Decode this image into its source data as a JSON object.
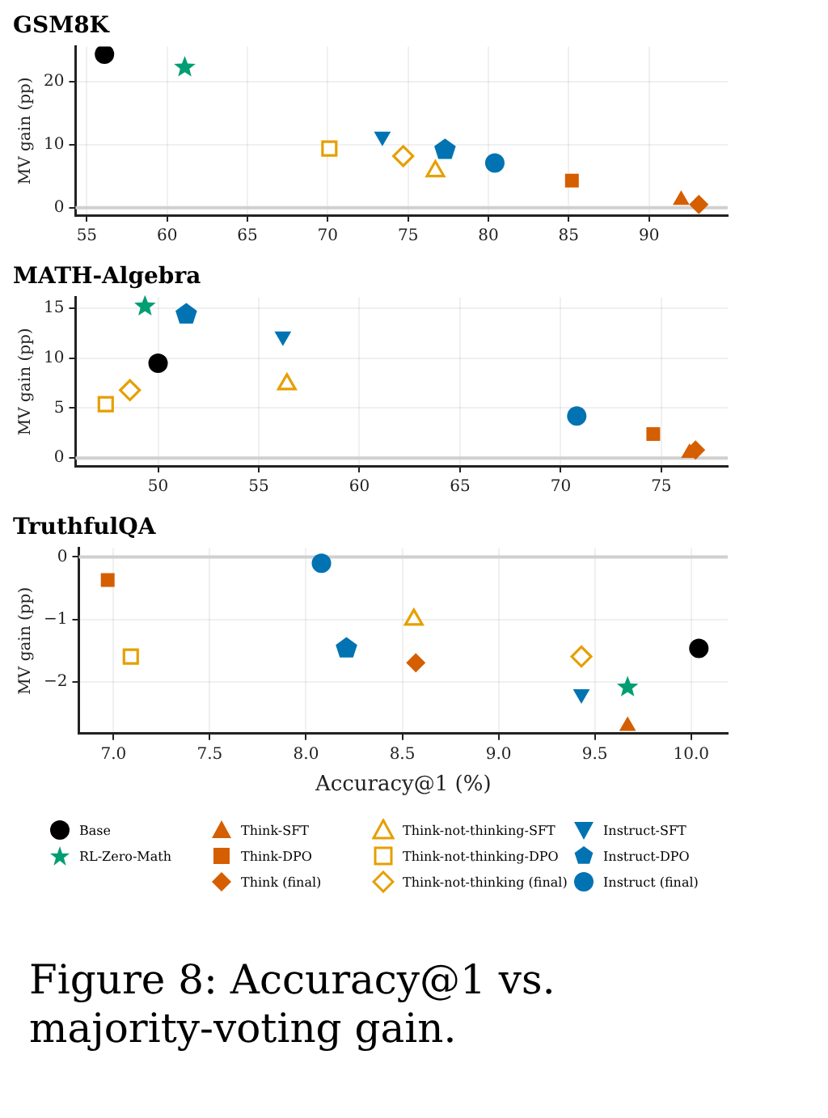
{
  "chart_data": [
    {
      "type": "scatter",
      "title": "GSM8K",
      "ylabel": "MV gain (pp)",
      "xlim": [
        54.3,
        94.9
      ],
      "xticks": [
        55,
        60,
        65,
        70,
        75,
        80,
        85,
        90
      ],
      "ylim": [
        -1.2,
        25.6
      ],
      "yticks": [
        0,
        10,
        20
      ],
      "grid": true,
      "legend": false,
      "ref_lines": [
        {
          "axis": "y",
          "value": 0,
          "color": "#d0d0d0"
        }
      ],
      "series": [
        {
          "color": "#000000",
          "marker": "circle",
          "x": [
            56.1
          ],
          "values": [
            24.4
          ]
        },
        {
          "color": "#029e73",
          "marker": "star",
          "x": [
            61.1
          ],
          "values": [
            22.3
          ]
        },
        {
          "color": "#d55e00",
          "marker": "triangle",
          "x": [
            92.0
          ],
          "values": [
            1.2
          ]
        },
        {
          "color": "#d55e00",
          "marker": "square",
          "x": [
            85.2
          ],
          "values": [
            4.3
          ]
        },
        {
          "color": "#d55e00",
          "marker": "diamond",
          "x": [
            93.1
          ],
          "values": [
            0.5
          ]
        },
        {
          "color": "#e69f00",
          "marker": "triangle-open",
          "x": [
            76.7
          ],
          "values": [
            5.8
          ]
        },
        {
          "color": "#e69f00",
          "marker": "square-open",
          "x": [
            70.1
          ],
          "values": [
            9.4
          ]
        },
        {
          "color": "#e69f00",
          "marker": "diamond-open",
          "x": [
            74.7
          ],
          "values": [
            8.2
          ]
        },
        {
          "color": "#0173b2",
          "marker": "triangle-down",
          "x": [
            73.4
          ],
          "values": [
            11.3
          ]
        },
        {
          "color": "#0173b2",
          "x": [
            77.3
          ],
          "values": [
            9.2
          ]
        },
        {
          "color": "#0173b2",
          "marker": "circle",
          "x": [
            80.4
          ],
          "values": [
            7.1
          ]
        }
      ]
    },
    {
      "type": "scatter",
      "title": "MATH-Algebra",
      "ylabel": "MV gain (pp)",
      "xlim": [
        45.9,
        78.3
      ],
      "xticks": [
        50,
        55,
        60,
        65,
        70,
        75
      ],
      "ylim": [
        -0.8,
        16.1
      ],
      "yticks": [
        0,
        5,
        10,
        15
      ],
      "grid": true,
      "legend": false,
      "ref_lines": [
        {
          "axis": "y",
          "value": 0,
          "color": "#d0d0d0"
        }
      ],
      "series": [
        {
          "color": "#000000",
          "marker": "circle",
          "x": [
            50.0
          ],
          "values": [
            9.5
          ]
        },
        {
          "color": "#029e73",
          "marker": "star",
          "x": [
            49.35
          ],
          "values": [
            15.2
          ]
        },
        {
          "color": "#d55e00",
          "marker": "triangle",
          "x": [
            76.4
          ],
          "values": [
            0.5
          ]
        },
        {
          "color": "#d55e00",
          "marker": "square",
          "x": [
            74.6
          ],
          "values": [
            2.4
          ]
        },
        {
          "color": "#d55e00",
          "marker": "diamond",
          "x": [
            76.7
          ],
          "values": [
            0.8
          ]
        },
        {
          "color": "#e69f00",
          "marker": "triangle-open",
          "x": [
            56.4
          ],
          "values": [
            7.4
          ]
        },
        {
          "color": "#e69f00",
          "marker": "square-open",
          "x": [
            47.4
          ],
          "values": [
            5.4
          ]
        },
        {
          "color": "#e69f00",
          "marker": "diamond-open",
          "x": [
            48.6
          ],
          "values": [
            6.8
          ]
        },
        {
          "color": "#0173b2",
          "marker": "triangle-down",
          "x": [
            56.2
          ],
          "values": [
            12.2
          ]
        },
        {
          "color": "#0173b2",
          "x": [
            51.4
          ],
          "values": [
            14.4
          ]
        },
        {
          "color": "#0173b2",
          "marker": "circle",
          "x": [
            70.8
          ],
          "values": [
            4.2
          ]
        }
      ]
    },
    {
      "type": "scatter",
      "title": "TruthfulQA",
      "xlabel": "Accuracy@1 (%)",
      "ylabel": "MV gain (pp)",
      "xlim": [
        6.82,
        10.19
      ],
      "xticks": [
        {
          "value": 7,
          "label": "7.0"
        },
        {
          "value": 7.5,
          "label": "7.5"
        },
        {
          "value": 8,
          "label": "8.0"
        },
        {
          "value": 8.5,
          "label": "8.5"
        },
        {
          "value": 9,
          "label": "9.0"
        },
        {
          "value": 9.5,
          "label": "9.5"
        },
        {
          "value": 10,
          "label": "10.0"
        }
      ],
      "ylim": [
        -2.82,
        0.14
      ],
      "yticks": [
        {
          "value": -2,
          "label": "−2"
        },
        {
          "value": -1,
          "label": "−1"
        },
        0
      ],
      "grid": true,
      "legend": "bottom",
      "ref_lines": [
        {
          "axis": "y",
          "value": 0,
          "color": "#d0d0d0"
        }
      ],
      "annotations": [
        "Figure 8:  Accuracy@1 vs. majority-voting gain."
      ],
      "series": [
        {
          "name": "Base",
          "color": "#000000",
          "marker": "circle",
          "x": [
            10.04
          ],
          "values": [
            -1.46
          ]
        },
        {
          "name": "RL-Zero-Math",
          "color": "#029e73",
          "marker": "star",
          "x": [
            9.67
          ],
          "values": [
            -2.08
          ]
        },
        {
          "name": "Think-SFT",
          "color": "#d55e00",
          "marker": "triangle",
          "x": [
            9.67
          ],
          "values": [
            -2.7
          ]
        },
        {
          "name": "Think-DPO",
          "color": "#d55e00",
          "marker": "square",
          "x": [
            6.97
          ],
          "values": [
            -0.37
          ]
        },
        {
          "name": "Think (final)",
          "color": "#d55e00",
          "marker": "diamond",
          "x": [
            8.57
          ],
          "values": [
            -1.69
          ]
        },
        {
          "name": "Think-not-thinking-SFT",
          "color": "#e69f00",
          "marker": "triangle-open",
          "x": [
            8.56
          ],
          "values": [
            -1.0
          ]
        },
        {
          "name": "Think-not-thinking-DPO",
          "color": "#e69f00",
          "marker": "square-open",
          "x": [
            7.09
          ],
          "values": [
            -1.59
          ]
        },
        {
          "name": "Think-not-thinking (final)",
          "color": "#e69f00",
          "marker": "diamond-open",
          "x": [
            9.43
          ],
          "values": [
            -1.59
          ]
        },
        {
          "name": "Instruct-SFT",
          "color": "#0173b2",
          "marker": "triangle-down",
          "x": [
            9.43
          ],
          "values": [
            -2.19
          ]
        },
        {
          "name": "Instruct-DPO",
          "color": "#0173b2",
          "x": [
            8.21
          ],
          "values": [
            -1.46
          ]
        },
        {
          "name": "Instruct (final)",
          "color": "#0173b2",
          "marker": "circle",
          "x": [
            8.08
          ],
          "values": [
            -0.1
          ]
        }
      ]
    }
  ]
}
